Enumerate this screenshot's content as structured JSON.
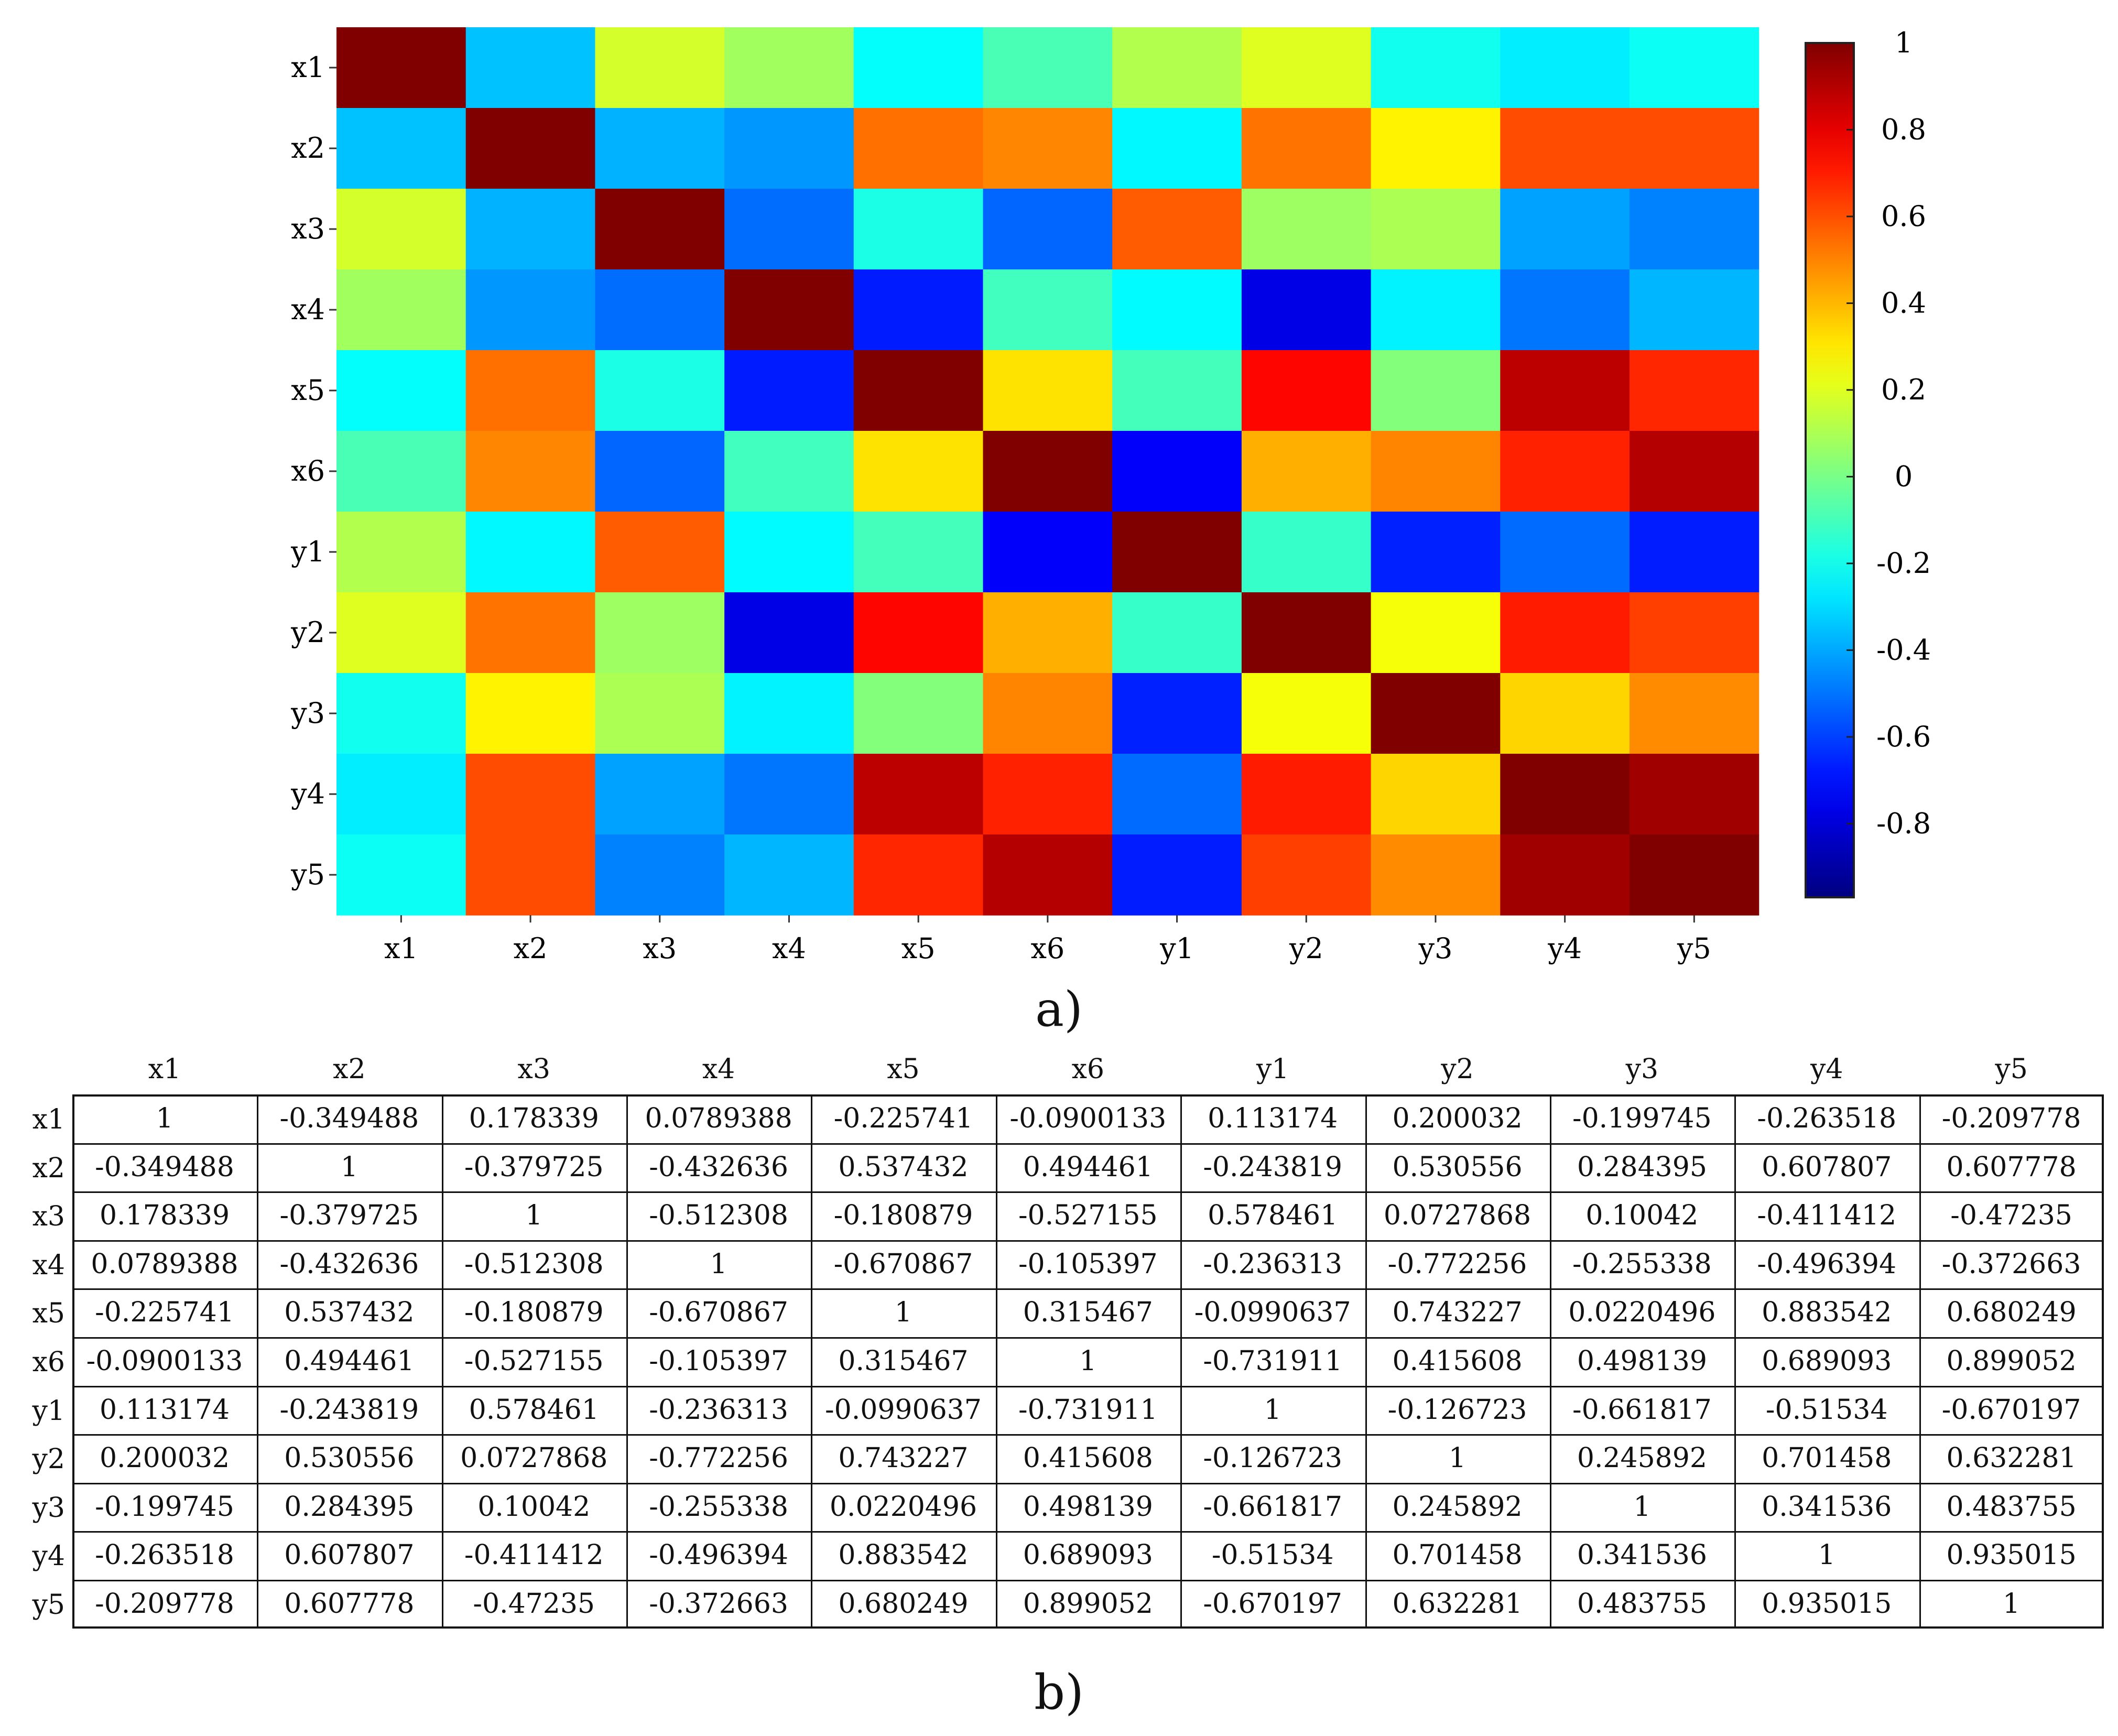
{
  "labels": [
    "x1",
    "x2",
    "x3",
    "x4",
    "x5",
    "x6",
    "y1",
    "y2",
    "y3",
    "y4",
    "y5"
  ],
  "chart_data": {
    "type": "heatmap",
    "title": "",
    "rows": [
      "x1",
      "x2",
      "x3",
      "x4",
      "x5",
      "x6",
      "y1",
      "y2",
      "y3",
      "y4",
      "y5"
    ],
    "columns": [
      "x1",
      "x2",
      "x3",
      "x4",
      "x5",
      "x6",
      "y1",
      "y2",
      "y3",
      "y4",
      "y5"
    ],
    "values": [
      [
        "1",
        "-0.349488",
        "0.178339",
        "0.0789388",
        "-0.225741",
        "-0.0900133",
        "0.113174",
        "0.200032",
        "-0.199745",
        "-0.263518",
        "-0.209778"
      ],
      [
        "-0.349488",
        "1",
        "-0.379725",
        "-0.432636",
        "0.537432",
        "0.494461",
        "-0.243819",
        "0.530556",
        "0.284395",
        "0.607807",
        "0.607778"
      ],
      [
        "0.178339",
        "-0.379725",
        "1",
        "-0.512308",
        "-0.180879",
        "-0.527155",
        "0.578461",
        "0.0727868",
        "0.10042",
        "-0.411412",
        "-0.47235"
      ],
      [
        "0.0789388",
        "-0.432636",
        "-0.512308",
        "1",
        "-0.670867",
        "-0.105397",
        "-0.236313",
        "-0.772256",
        "-0.255338",
        "-0.496394",
        "-0.372663"
      ],
      [
        "-0.225741",
        "0.537432",
        "-0.180879",
        "-0.670867",
        "1",
        "0.315467",
        "-0.0990637",
        "0.743227",
        "0.0220496",
        "0.883542",
        "0.680249"
      ],
      [
        "-0.0900133",
        "0.494461",
        "-0.527155",
        "-0.105397",
        "0.315467",
        "1",
        "-0.731911",
        "0.415608",
        "0.498139",
        "0.689093",
        "0.899052"
      ],
      [
        "0.113174",
        "-0.243819",
        "0.578461",
        "-0.236313",
        "-0.0990637",
        "-0.731911",
        "1",
        "-0.126723",
        "-0.661817",
        "-0.51534",
        "-0.670197"
      ],
      [
        "0.200032",
        "0.530556",
        "0.0727868",
        "-0.772256",
        "0.743227",
        "0.415608",
        "-0.126723",
        "1",
        "0.245892",
        "0.701458",
        "0.632281"
      ],
      [
        "-0.199745",
        "0.284395",
        "0.10042",
        "-0.255338",
        "0.0220496",
        "0.498139",
        "-0.661817",
        "0.245892",
        "1",
        "0.341536",
        "0.483755"
      ],
      [
        "-0.263518",
        "0.607807",
        "-0.411412",
        "-0.496394",
        "0.883542",
        "0.689093",
        "-0.51534",
        "0.701458",
        "0.341536",
        "1",
        "0.935015"
      ],
      [
        "-0.209778",
        "0.607778",
        "-0.47235",
        "-0.372663",
        "0.680249",
        "0.899052",
        "-0.670197",
        "0.632281",
        "0.483755",
        "0.935015",
        "1"
      ]
    ],
    "colorbar": {
      "range": [
        -0.97,
        1.0
      ],
      "ticks": [
        1,
        0.8,
        0.6,
        0.4,
        0.2,
        0,
        -0.2,
        -0.4,
        -0.6,
        -0.8
      ],
      "tick_labels": [
        "1",
        "0.8",
        "0.6",
        "0.4",
        "0.2",
        "0",
        "-0.2",
        "-0.4",
        "-0.6",
        "-0.8"
      ],
      "colormap": "jet"
    }
  },
  "panel_a_label": "a)",
  "panel_b_label": "b)"
}
